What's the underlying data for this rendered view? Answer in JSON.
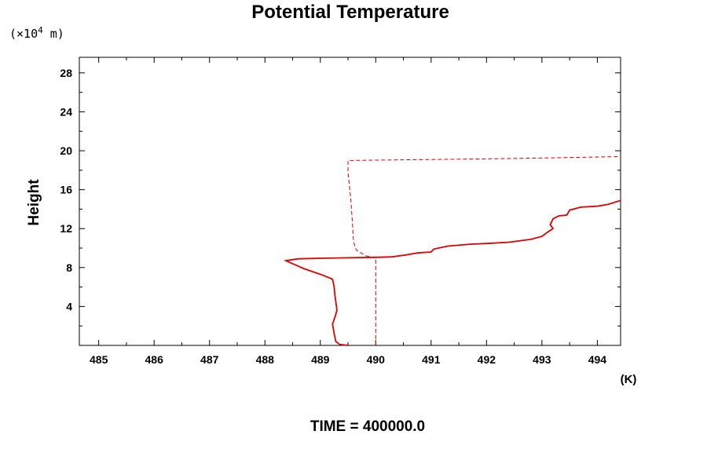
{
  "chart_data": {
    "type": "line",
    "title": "Potential Temperature",
    "ylabel": "Height",
    "y_scale_label": "(×10",
    "y_scale_exp": "4",
    "y_scale_unit": " m)",
    "xunit": "(K)",
    "footer": "TIME = 400000.0",
    "xlim": [
      484.65,
      494.42
    ],
    "ylim": [
      0,
      29.6
    ],
    "x_ticks": [
      "485",
      "486",
      "487",
      "488",
      "489",
      "490",
      "491",
      "492",
      "493",
      "494"
    ],
    "y_ticks": [
      "4",
      "8",
      "12",
      "16",
      "20",
      "24",
      "28"
    ],
    "colors": {
      "series": "#e00000",
      "axis": "#000000"
    },
    "grid": false,
    "series": [
      {
        "style": "solid",
        "points": [
          [
            489.5,
            0.0
          ],
          [
            489.35,
            0.1
          ],
          [
            489.28,
            0.4
          ],
          [
            489.25,
            1.2
          ],
          [
            489.22,
            2.2
          ],
          [
            489.27,
            3.0
          ],
          [
            489.3,
            3.6
          ],
          [
            489.28,
            4.5
          ],
          [
            489.26,
            5.3
          ],
          [
            489.25,
            6.0
          ],
          [
            489.22,
            6.8
          ],
          [
            489.05,
            7.2
          ],
          [
            488.9,
            7.5
          ],
          [
            488.7,
            7.9
          ],
          [
            488.5,
            8.4
          ],
          [
            488.38,
            8.7
          ],
          [
            488.6,
            8.9
          ],
          [
            489.0,
            8.95
          ],
          [
            489.5,
            9.0
          ],
          [
            490.0,
            9.05
          ],
          [
            490.3,
            9.1
          ],
          [
            490.55,
            9.3
          ],
          [
            490.75,
            9.5
          ],
          [
            491.0,
            9.6
          ],
          [
            491.05,
            9.9
          ],
          [
            491.3,
            10.2
          ],
          [
            491.7,
            10.4
          ],
          [
            492.1,
            10.5
          ],
          [
            492.4,
            10.6
          ],
          [
            492.8,
            10.9
          ],
          [
            493.0,
            11.2
          ],
          [
            493.12,
            11.7
          ],
          [
            493.2,
            12.0
          ],
          [
            493.15,
            12.4
          ],
          [
            493.2,
            13.0
          ],
          [
            493.3,
            13.3
          ],
          [
            493.45,
            13.4
          ],
          [
            493.5,
            13.9
          ],
          [
            493.7,
            14.2
          ],
          [
            494.0,
            14.3
          ],
          [
            494.2,
            14.5
          ],
          [
            494.42,
            14.9
          ]
        ]
      },
      {
        "style": "dashed",
        "points": [
          [
            490.0,
            0.0
          ],
          [
            490.0,
            9.0
          ],
          [
            489.82,
            9.2
          ],
          [
            489.65,
            9.8
          ],
          [
            489.6,
            10.6
          ],
          [
            489.58,
            12.5
          ],
          [
            489.55,
            15.0
          ],
          [
            489.53,
            16.2
          ],
          [
            489.5,
            17.8
          ],
          [
            489.5,
            19.0
          ],
          [
            491.0,
            19.1
          ],
          [
            492.5,
            19.2
          ],
          [
            494.42,
            19.4
          ]
        ]
      }
    ]
  }
}
